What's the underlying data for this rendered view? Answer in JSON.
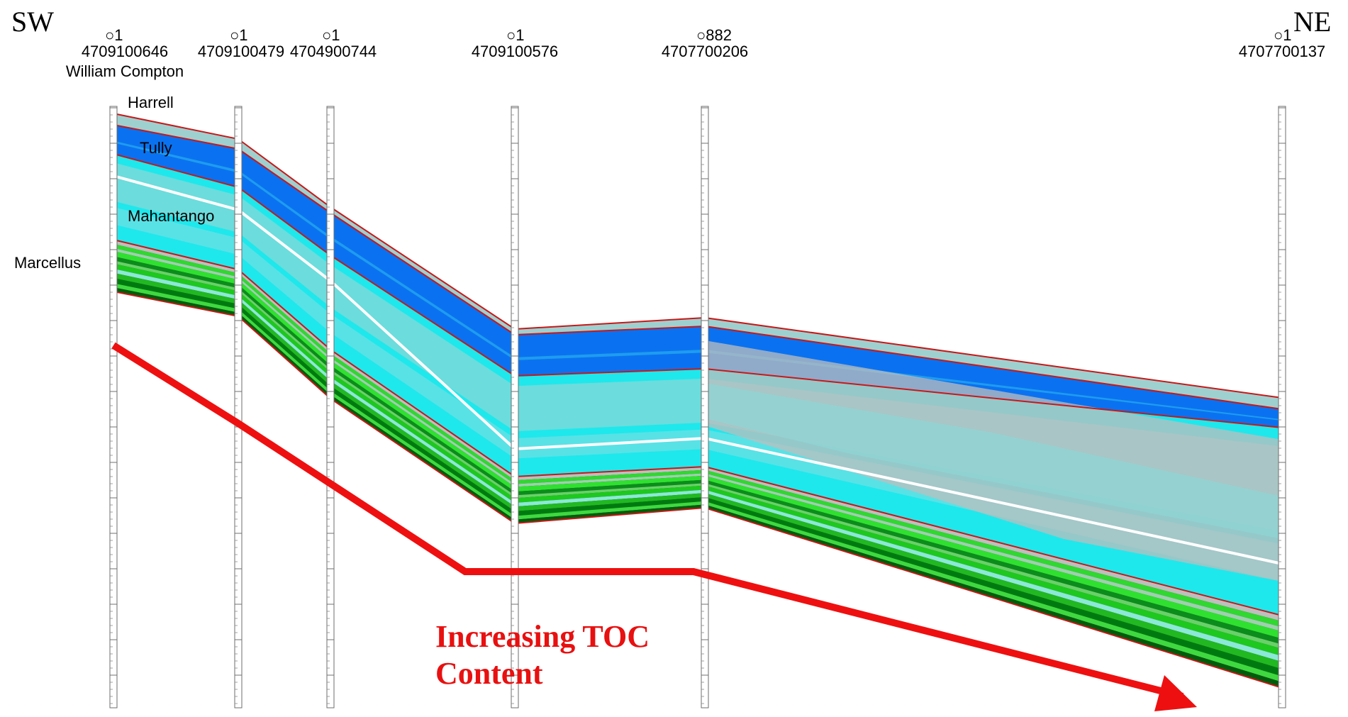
{
  "directions": {
    "left": "SW",
    "right": "NE"
  },
  "wells": [
    {
      "symbol": "○",
      "number": "1",
      "api": "4709100646",
      "name": "William Compton"
    },
    {
      "symbol": "○",
      "number": "1",
      "api": "4709100479",
      "name": ""
    },
    {
      "symbol": "○",
      "number": "1",
      "api": "4704900744",
      "name": ""
    },
    {
      "symbol": "○",
      "number": "1",
      "api": "4709100576",
      "name": ""
    },
    {
      "symbol": "○",
      "number": "882",
      "api": "4707700206",
      "name": ""
    },
    {
      "symbol": "○",
      "number": "1",
      "api": "4707700137",
      "name": ""
    }
  ],
  "formations": [
    {
      "name": "Harrell",
      "color": "#9fd0d0"
    },
    {
      "name": "Tully",
      "color": "#0a72f0"
    },
    {
      "name": "Mahantango",
      "color": "#1ee8ec"
    },
    {
      "name": "Marcellus",
      "color": "#18b418"
    }
  ],
  "annotation": {
    "line1": "Increasing TOC",
    "line2": "Content",
    "color": "#e81010"
  },
  "colors": {
    "boundary": "#c81818",
    "tully": "#0a72f0",
    "mahantango": "#1ee8ec",
    "harrell": "#9fd0d0",
    "marcellus_dark": "#006a10",
    "marcellus_light": "#30e030",
    "gray": "#bebebe",
    "arrow": "#ee1010"
  }
}
